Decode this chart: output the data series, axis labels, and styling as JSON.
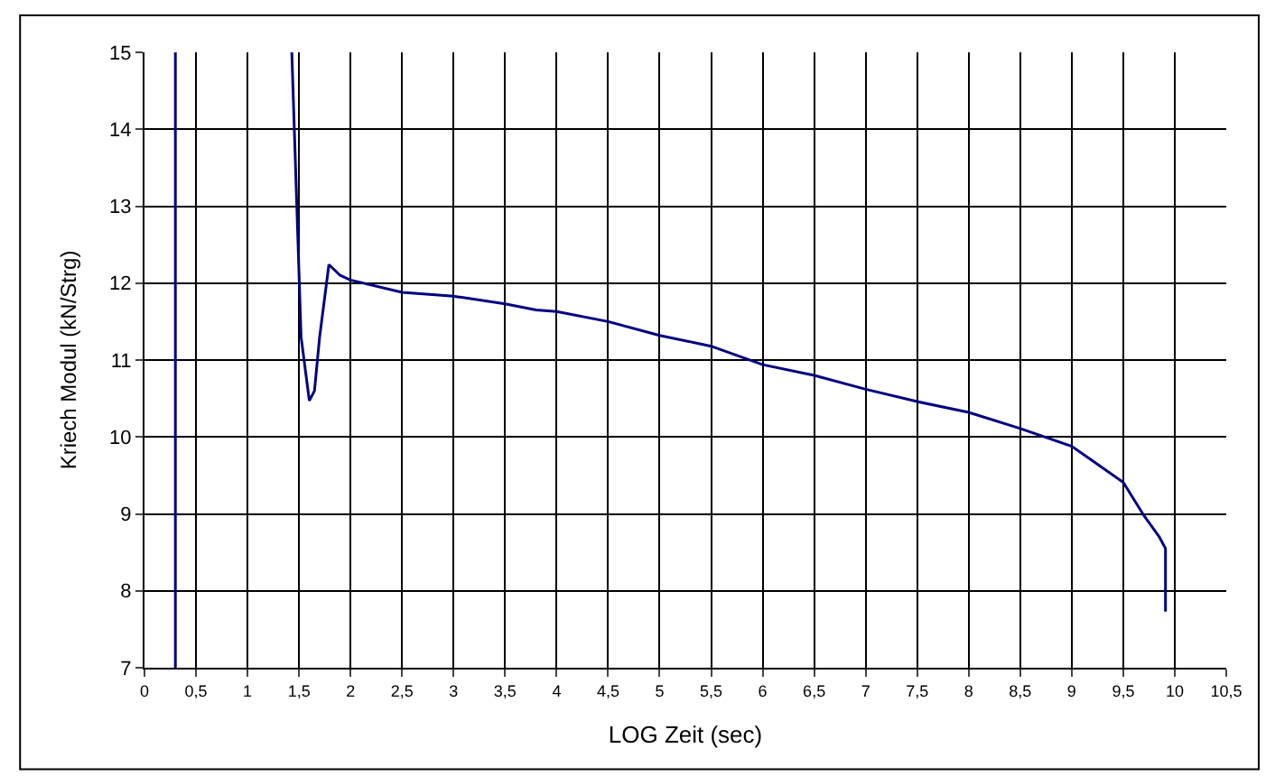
{
  "chart_data": {
    "type": "line",
    "xlabel": "LOG Zeit (sec)",
    "ylabel": "Kriech Modul (kN/Strg)",
    "x": [
      0.3,
      0.3,
      1.0,
      1.43,
      1.52,
      1.6,
      1.65,
      1.7,
      1.79,
      1.9,
      2.0,
      2.5,
      3.0,
      3.5,
      3.8,
      4.0,
      4.5,
      5.0,
      5.5,
      6.0,
      6.5,
      7.0,
      7.5,
      8.0,
      8.5,
      9.0,
      9.5,
      9.7,
      9.85,
      9.91,
      9.91
    ],
    "series": [
      {
        "color": "#000080",
        "values": [
          7,
          15,
          null,
          15,
          11.3,
          10.47,
          10.6,
          11.3,
          12.24,
          12.1,
          12.04,
          11.88,
          11.83,
          11.73,
          11.65,
          11.63,
          11.5,
          11.32,
          11.18,
          10.94,
          10.8,
          10.62,
          10.46,
          10.32,
          10.11,
          9.88,
          9.41,
          8.98,
          8.7,
          8.55,
          7.73
        ]
      }
    ],
    "xlim": [
      0,
      10.5
    ],
    "xticks": [
      0,
      {
        "value": 0.5,
        "label": "0,5"
      },
      1,
      {
        "value": 1.5,
        "label": "1,5"
      },
      2,
      {
        "value": 2.5,
        "label": "2,5"
      },
      3,
      {
        "value": 3.5,
        "label": "3,5"
      },
      4,
      {
        "value": 4.5,
        "label": "4,5"
      },
      5,
      {
        "value": 5.5,
        "label": "5,5"
      },
      6,
      {
        "value": 6.5,
        "label": "6,5"
      },
      7,
      {
        "value": 7.5,
        "label": "7,5"
      },
      8,
      {
        "value": 8.5,
        "label": "8,5"
      },
      9,
      {
        "value": 9.5,
        "label": "9,5"
      },
      10,
      {
        "value": 10.5,
        "label": "10,5"
      }
    ],
    "ylim": [
      7,
      15
    ],
    "yticks": [
      7,
      8,
      9,
      10,
      11,
      12,
      13,
      14,
      15
    ],
    "grid": true,
    "marker": "none",
    "line_style": "solid"
  }
}
